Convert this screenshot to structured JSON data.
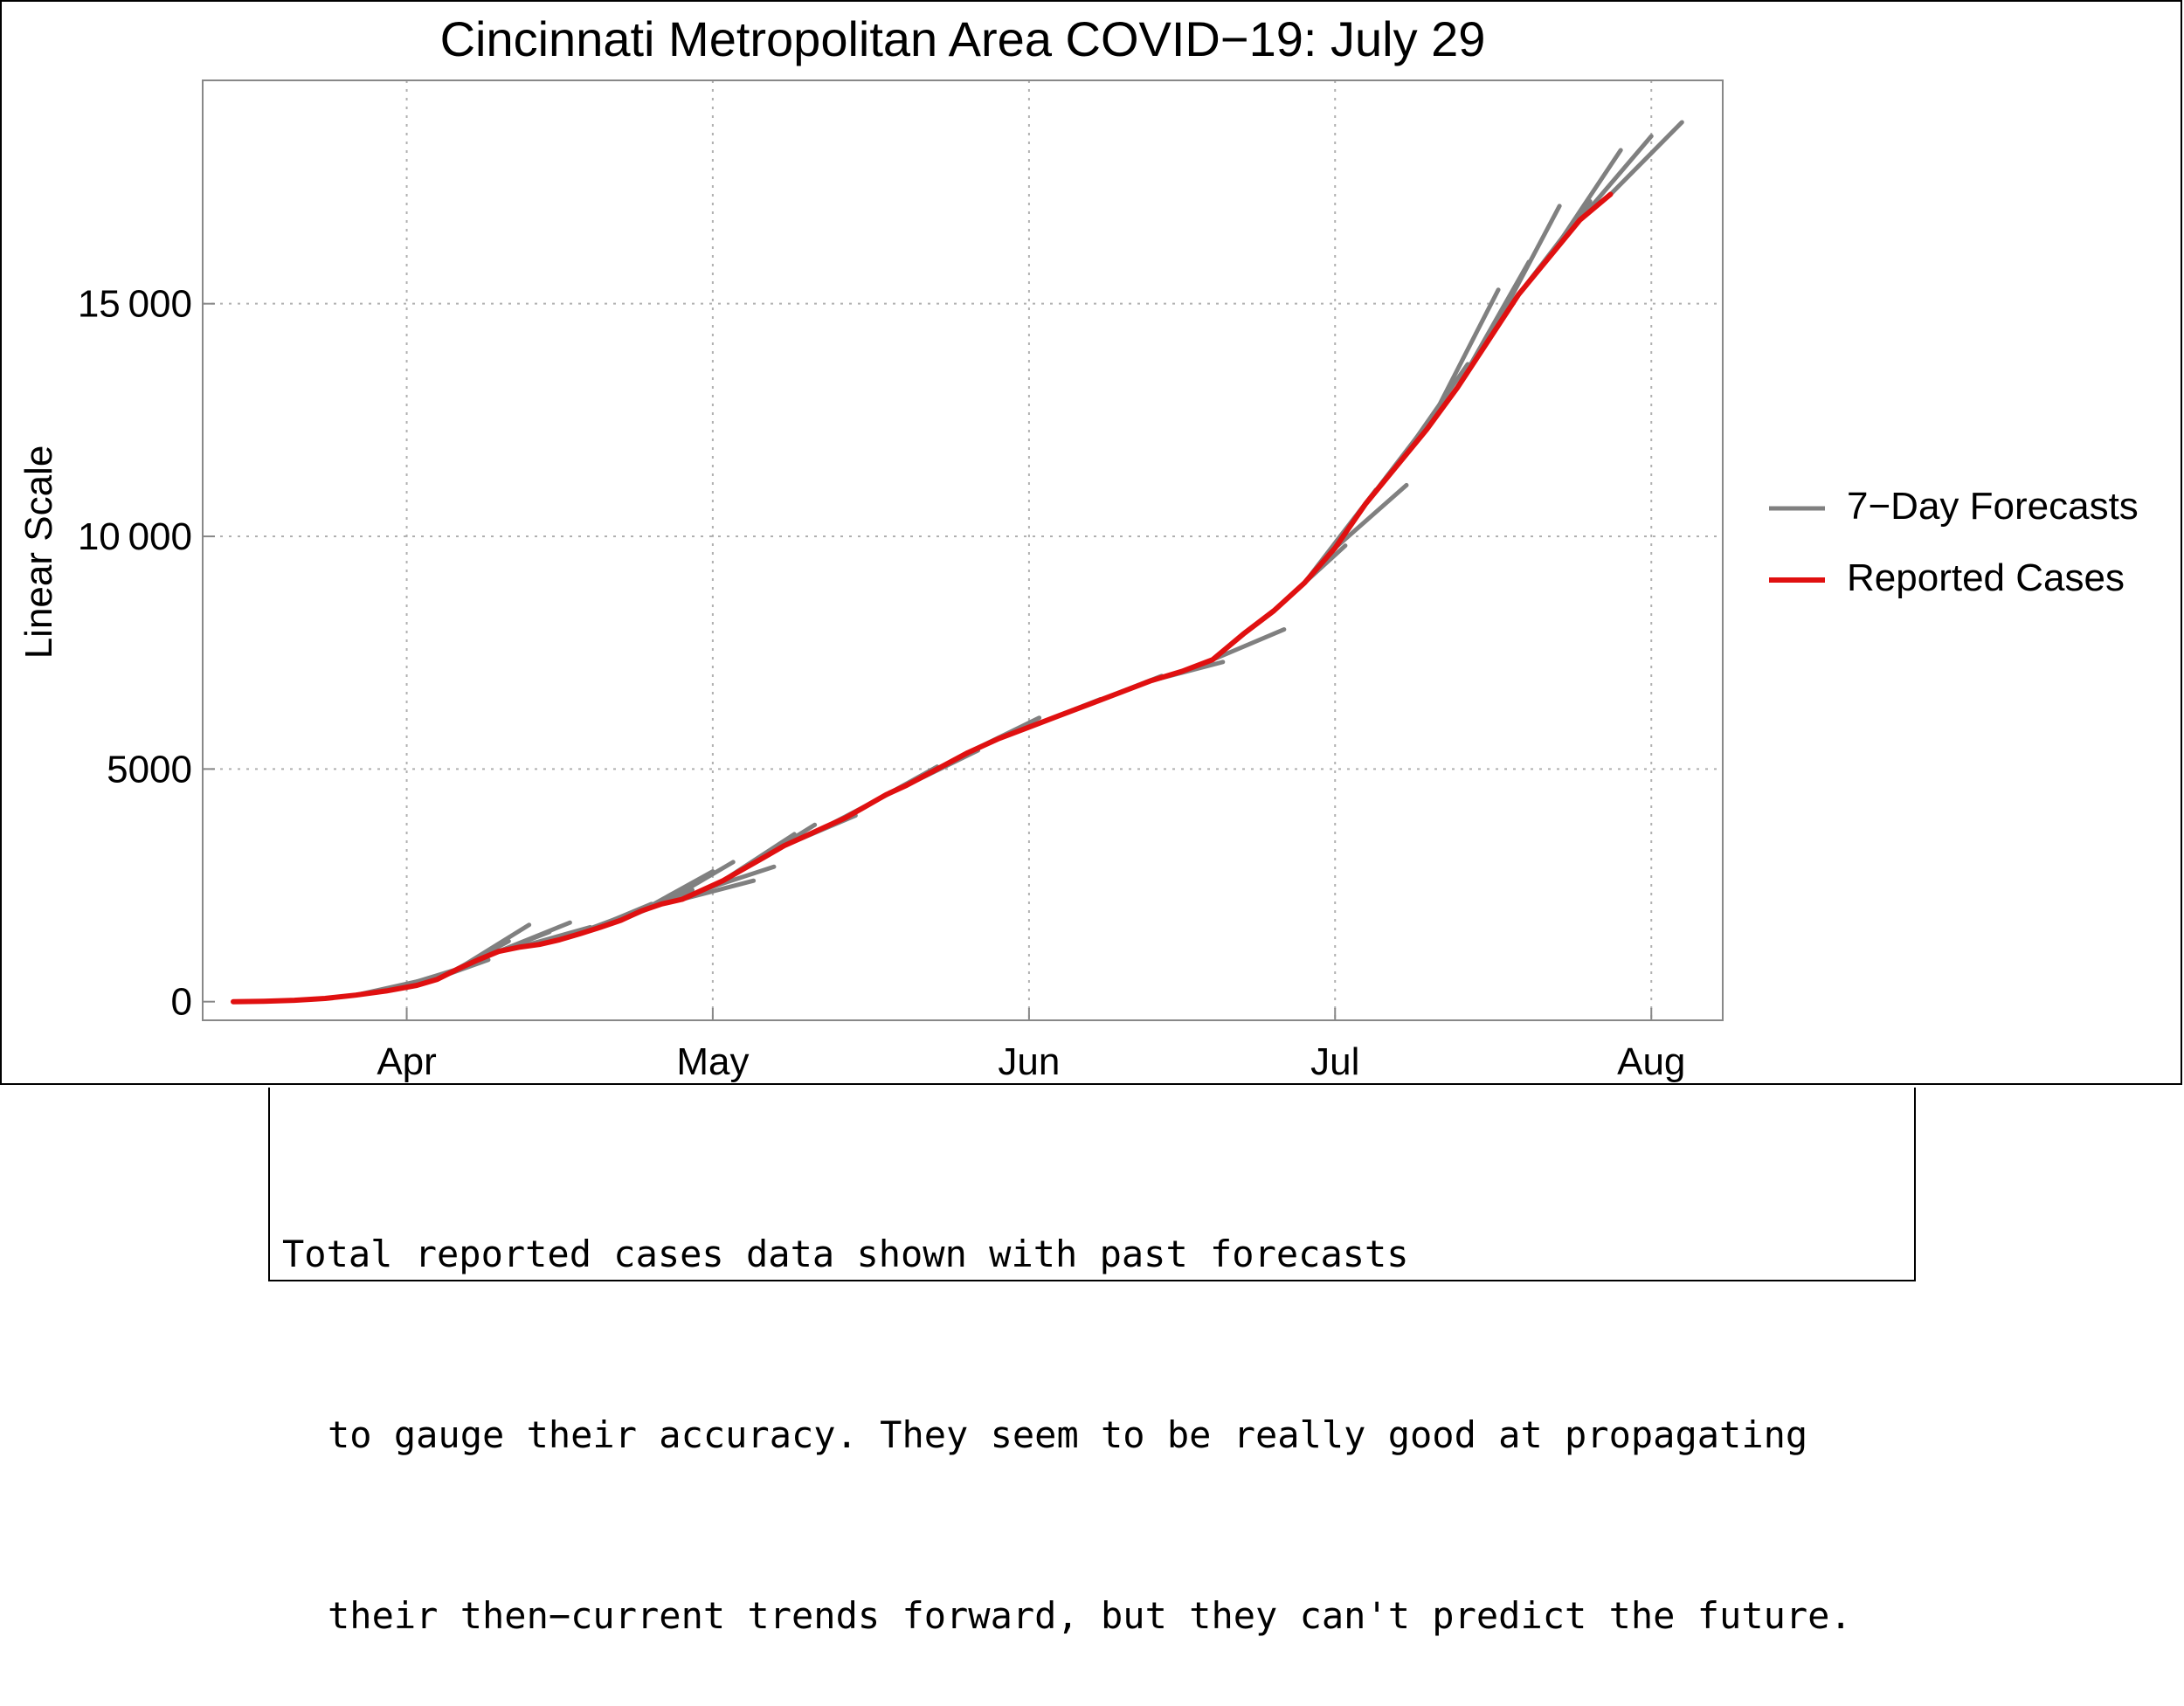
{
  "chart_data": {
    "type": "line",
    "title": "Cincinnati Metropolitan Area COVID−19: July 29",
    "xlabel": "",
    "ylabel": "Linear Scale",
    "x_unit": "days since Mar 1",
    "xlim": [
      11,
      160
    ],
    "ylim": [
      -400,
      19800
    ],
    "x_ticks": [
      {
        "label": "Apr",
        "day": 31
      },
      {
        "label": "May",
        "day": 61
      },
      {
        "label": "Jun",
        "day": 92
      },
      {
        "label": "Jul",
        "day": 122
      },
      {
        "label": "Aug",
        "day": 153
      }
    ],
    "y_ticks": [
      {
        "label": "0",
        "value": 0
      },
      {
        "label": "5000",
        "value": 5000
      },
      {
        "label": "10 000",
        "value": 10000
      },
      {
        "label": "15 000",
        "value": 15000
      }
    ],
    "grid": true,
    "legend_position": "right",
    "legend": [
      "7−Day Forecasts",
      "Reported Cases"
    ],
    "series": [
      {
        "name": "Reported Cases",
        "color": "#e01010",
        "x": [
          14,
          17,
          20,
          23,
          26,
          29,
          32,
          34,
          36,
          38,
          40,
          42,
          44,
          46,
          48,
          50,
          52,
          54,
          56,
          58,
          60,
          62,
          64,
          66,
          68,
          70,
          72,
          74,
          76,
          78,
          80,
          83,
          86,
          89,
          92,
          95,
          98,
          101,
          104,
          107,
          110,
          113,
          116,
          119,
          122,
          125,
          128,
          131,
          134,
          137,
          140,
          143,
          146,
          149
        ],
        "values": [
          0,
          10,
          30,
          70,
          140,
          230,
          350,
          480,
          700,
          900,
          1080,
          1170,
          1230,
          1330,
          1460,
          1600,
          1750,
          1950,
          2100,
          2200,
          2400,
          2600,
          2850,
          3100,
          3350,
          3550,
          3750,
          3950,
          4200,
          4450,
          4650,
          5000,
          5350,
          5650,
          5900,
          6150,
          6400,
          6650,
          6900,
          7100,
          7350,
          7900,
          8400,
          9000,
          9750,
          10700,
          11500,
          12300,
          13200,
          14200,
          15200,
          16000,
          16800,
          17350
        ]
      },
      {
        "name": "7−Day Forecasts",
        "color": "#808080",
        "segments": [
          {
            "x": [
              26,
              33
            ],
            "y": [
              140,
              480
            ]
          },
          {
            "x": [
              29,
              36
            ],
            "y": [
              230,
              700
            ]
          },
          {
            "x": [
              32,
              39
            ],
            "y": [
              350,
              900
            ]
          },
          {
            "x": [
              34,
              41
            ],
            "y": [
              480,
              1300
            ]
          },
          {
            "x": [
              36,
              43
            ],
            "y": [
              700,
              1650
            ]
          },
          {
            "x": [
              38,
              45
            ],
            "y": [
              900,
              1500
            ]
          },
          {
            "x": [
              40,
              47
            ],
            "y": [
              1080,
              1700
            ]
          },
          {
            "x": [
              42,
              49
            ],
            "y": [
              1170,
              1600
            ]
          },
          {
            "x": [
              44,
              51
            ],
            "y": [
              1230,
              1700
            ]
          },
          {
            "x": [
              46,
              53
            ],
            "y": [
              1330,
              1900
            ]
          },
          {
            "x": [
              48,
              55
            ],
            "y": [
              1460,
              2100
            ]
          },
          {
            "x": [
              50,
              57
            ],
            "y": [
              1600,
              2200
            ]
          },
          {
            "x": [
              52,
              59
            ],
            "y": [
              1750,
              2400
            ]
          },
          {
            "x": [
              54,
              61
            ],
            "y": [
              1950,
              2800
            ]
          },
          {
            "x": [
              56,
              63
            ],
            "y": [
              2100,
              3000
            ]
          },
          {
            "x": [
              58,
              65
            ],
            "y": [
              2200,
              2600
            ]
          },
          {
            "x": [
              60,
              67
            ],
            "y": [
              2400,
              2900
            ]
          },
          {
            "x": [
              62,
              69
            ],
            "y": [
              2600,
              3600
            ]
          },
          {
            "x": [
              64,
              71
            ],
            "y": [
              2850,
              3800
            ]
          },
          {
            "x": [
              68,
              75
            ],
            "y": [
              3350,
              4000
            ]
          },
          {
            "x": [
              72,
              79
            ],
            "y": [
              3750,
              4550
            ]
          },
          {
            "x": [
              76,
              83
            ],
            "y": [
              4200,
              5050
            ]
          },
          {
            "x": [
              80,
              87
            ],
            "y": [
              4650,
              5400
            ]
          },
          {
            "x": [
              86,
              93
            ],
            "y": [
              5350,
              6100
            ]
          },
          {
            "x": [
              92,
              99
            ],
            "y": [
              5900,
              6500
            ]
          },
          {
            "x": [
              98,
              105
            ],
            "y": [
              6400,
              7000
            ]
          },
          {
            "x": [
              104,
              111
            ],
            "y": [
              6900,
              7300
            ]
          },
          {
            "x": [
              110,
              117
            ],
            "y": [
              7350,
              8000
            ]
          },
          {
            "x": [
              116,
              123
            ],
            "y": [
              8400,
              9800
            ]
          },
          {
            "x": [
              119,
              126
            ],
            "y": [
              9000,
              11000
            ]
          },
          {
            "x": [
              122,
              129
            ],
            "y": [
              9750,
              11100
            ]
          },
          {
            "x": [
              125,
              132
            ],
            "y": [
              10700,
              12700
            ]
          },
          {
            "x": [
              128,
              135
            ],
            "y": [
              11500,
              13700
            ]
          },
          {
            "x": [
              131,
              138
            ],
            "y": [
              12300,
              15300
            ]
          },
          {
            "x": [
              134,
              141
            ],
            "y": [
              13200,
              15900
            ]
          },
          {
            "x": [
              137,
              144
            ],
            "y": [
              14200,
              17100
            ]
          },
          {
            "x": [
              140,
              147
            ],
            "y": [
              15200,
              17200
            ]
          },
          {
            "x": [
              143,
              150
            ],
            "y": [
              16000,
              18300
            ]
          },
          {
            "x": [
              146,
              153
            ],
            "y": [
              16800,
              18600
            ]
          },
          {
            "x": [
              149,
              156
            ],
            "y": [
              17350,
              18900
            ]
          }
        ]
      }
    ]
  },
  "caption": {
    "line1": "Total reported cases data shown with past forecasts",
    "line2": "to gauge their accuracy. They seem to be really good at propagating",
    "line3": "their then−current trends forward, but they can't predict the future."
  }
}
